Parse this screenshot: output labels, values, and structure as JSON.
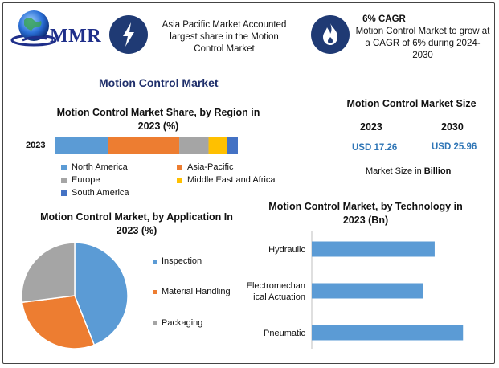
{
  "brand": {
    "logo_text": "MMR"
  },
  "header": {
    "box1_text": "Asia Pacific Market Accounted largest share in the Motion Control Market",
    "box2_title": "6% CAGR",
    "box2_text": "Motion Control Market to grow at a CAGR of 6% during 2024-2030"
  },
  "main_title": "Motion Control Market",
  "market_size": {
    "title": "Motion Control Market Size",
    "years": [
      "2023",
      "2030"
    ],
    "values": [
      "USD 17.26",
      "USD 25.96"
    ],
    "note_prefix": "Market Size in ",
    "note_bold": "Billion"
  },
  "chart_data": [
    {
      "type": "bar",
      "orientation": "horizontal-stacked",
      "title": "Motion Control Market Share, by Region in 2023 (%)",
      "categories": [
        "2023"
      ],
      "series": [
        {
          "name": "North America",
          "values": [
            29
          ],
          "color": "#5b9bd5"
        },
        {
          "name": "Asia-Pacific",
          "values": [
            39
          ],
          "color": "#ed7d31"
        },
        {
          "name": "Europe",
          "values": [
            16
          ],
          "color": "#a5a5a5"
        },
        {
          "name": "Middle East and Africa",
          "values": [
            10
          ],
          "color": "#ffc000"
        },
        {
          "name": "South America",
          "values": [
            6
          ],
          "color": "#4472c4"
        }
      ],
      "legend_position": "bottom"
    },
    {
      "type": "pie",
      "title": "Motion Control Market, by Application In 2023 (%)",
      "labels": [
        "Inspection",
        "Material Handling",
        "Packaging"
      ],
      "values": [
        44,
        29,
        27
      ],
      "colors": [
        "#5b9bd5",
        "#ed7d31",
        "#a5a5a5"
      ],
      "legend_position": "right"
    },
    {
      "type": "bar",
      "orientation": "horizontal",
      "title": "Motion Control Market, by Technology in 2023 (Bn)",
      "categories": [
        "Hydraulic",
        "Electromechanical Actuation",
        "Pneumatic"
      ],
      "category_lines": [
        [
          "Hydraulic"
        ],
        [
          "Electromechan",
          "ical Actuation"
        ],
        [
          "Pneumatic"
        ]
      ],
      "values": [
        6.5,
        5.9,
        8.0
      ],
      "xlim": [
        0,
        8.5
      ],
      "color": "#5b9bd5"
    }
  ]
}
